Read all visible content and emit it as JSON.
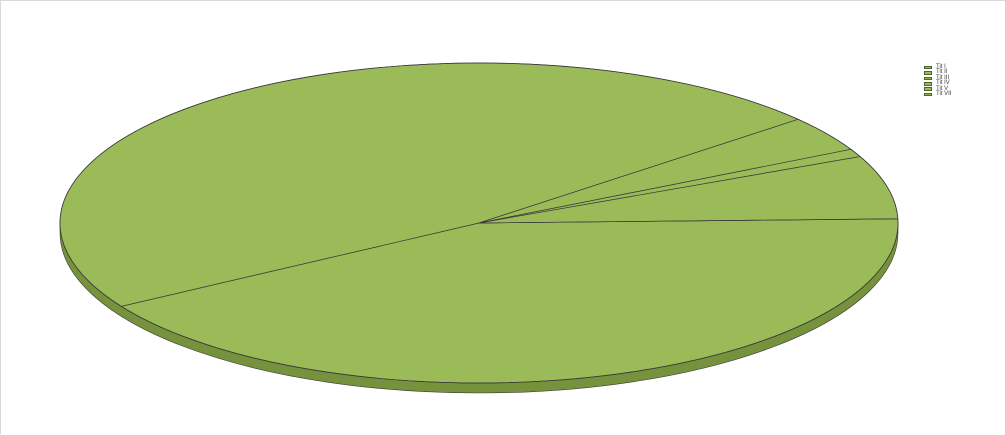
{
  "chart_data": {
    "type": "pie",
    "three_d": true,
    "legend_position": "right",
    "categories": [
      "Tit I",
      "Tit II",
      "Tit III",
      "Tit IV",
      "Tit V",
      "Tit VII"
    ],
    "values": [
      41.7,
      47.5,
      3.6,
      0.8,
      6.4,
      0.0
    ],
    "slice_color": "#9bbb59",
    "side_color": "#76923c",
    "edge_color": "#3a3a3a"
  },
  "legend": {
    "items": [
      {
        "label": "Tit I"
      },
      {
        "label": "Tit II"
      },
      {
        "label": "Tit III"
      },
      {
        "label": "Tit IV"
      },
      {
        "label": "Tit V"
      },
      {
        "label": "Tit VII"
      }
    ]
  }
}
